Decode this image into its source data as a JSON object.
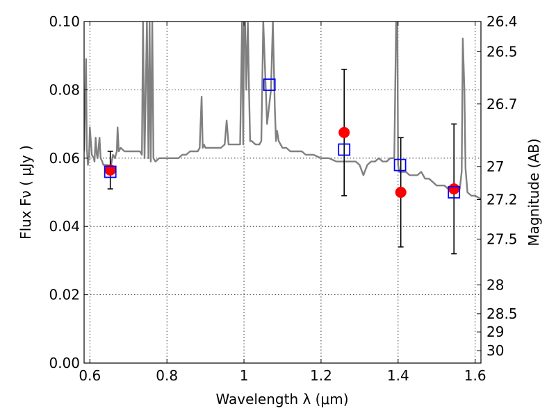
{
  "chart_data": {
    "type": "scatter",
    "title": "",
    "xlabel": "Wavelength  λ (μm)",
    "ylabel": "Flux  Fν  ( μJy )",
    "y2label": "Magnitude (AB)",
    "xlim": [
      0.585,
      1.615
    ],
    "ylim": [
      0.0,
      0.1
    ],
    "grid": true,
    "x_ticks": [
      0.6,
      0.8,
      1.0,
      1.2,
      1.4,
      1.6
    ],
    "x_tick_labels": [
      "0.6",
      "0.8",
      "1",
      "1.2",
      "1.4",
      "1.6"
    ],
    "y_ticks": [
      0.0,
      0.02,
      0.04,
      0.06,
      0.08,
      0.1
    ],
    "y_tick_labels": [
      "0.00",
      "0.02",
      "0.04",
      "0.06",
      "0.08",
      "0.10"
    ],
    "y2_ticks": [
      {
        "label": "26.4",
        "mag": 26.4
      },
      {
        "label": "26.5",
        "mag": 26.5
      },
      {
        "label": "26.7",
        "mag": 26.7
      },
      {
        "label": "27",
        "mag": 27
      },
      {
        "label": "27.2",
        "mag": 27.2
      },
      {
        "label": "27.5",
        "mag": 27.5
      },
      {
        "label": "28",
        "mag": 28
      },
      {
        "label": "28.5",
        "mag": 28.5
      },
      {
        "label": "29",
        "mag": 29
      },
      {
        "label": "30",
        "mag": 30
      }
    ],
    "colors": {
      "spectrum": "#808080",
      "observed": "#ff0000",
      "model": "#0000ff",
      "errorbar": "#000000",
      "grid": "#000000"
    },
    "series": [
      {
        "kind": "line",
        "x": [
          0.585,
          0.59,
          0.592,
          0.595,
          0.598,
          0.6,
          0.605,
          0.61,
          0.612,
          0.615,
          0.618,
          0.62,
          0.625,
          0.628,
          0.632,
          0.635,
          0.64,
          0.645,
          0.65,
          0.655,
          0.66,
          0.665,
          0.67,
          0.672,
          0.675,
          0.68,
          0.69,
          0.7,
          0.71,
          0.72,
          0.73,
          0.735,
          0.738,
          0.742,
          0.748,
          0.752,
          0.755,
          0.758,
          0.762,
          0.765,
          0.77,
          0.78,
          0.79,
          0.8,
          0.81,
          0.82,
          0.83,
          0.84,
          0.85,
          0.86,
          0.87,
          0.88,
          0.885,
          0.89,
          0.893,
          0.896,
          0.9,
          0.91,
          0.92,
          0.93,
          0.94,
          0.95,
          0.955,
          0.96,
          0.963,
          0.966,
          0.97,
          0.98,
          0.99,
          0.995,
          0.998,
          1.0,
          1.003,
          1.006,
          1.01,
          1.013,
          1.016,
          1.02,
          1.03,
          1.04,
          1.045,
          1.05,
          1.06,
          1.07,
          1.075,
          1.08,
          1.083,
          1.086,
          1.09,
          1.1,
          1.11,
          1.12,
          1.13,
          1.14,
          1.15,
          1.16,
          1.18,
          1.2,
          1.22,
          1.24,
          1.25,
          1.26,
          1.27,
          1.28,
          1.29,
          1.3,
          1.31,
          1.32,
          1.33,
          1.34,
          1.35,
          1.36,
          1.37,
          1.38,
          1.39,
          1.395,
          1.398,
          1.4,
          1.403,
          1.406,
          1.41,
          1.42,
          1.43,
          1.44,
          1.45,
          1.46,
          1.47,
          1.48,
          1.49,
          1.5,
          1.51,
          1.52,
          1.53,
          1.54,
          1.55,
          1.56,
          1.565,
          1.568,
          1.572,
          1.575,
          1.58,
          1.59,
          1.6,
          1.615
        ],
        "y": [
          0.062,
          0.089,
          0.063,
          0.058,
          0.061,
          0.069,
          0.061,
          0.06,
          0.059,
          0.066,
          0.061,
          0.06,
          0.066,
          0.06,
          0.059,
          0.058,
          0.058,
          0.058,
          0.057,
          0.058,
          0.061,
          0.06,
          0.062,
          0.069,
          0.062,
          0.063,
          0.062,
          0.062,
          0.062,
          0.062,
          0.062,
          0.061,
          0.1,
          0.06,
          0.1,
          0.06,
          0.1,
          0.059,
          0.1,
          0.06,
          0.059,
          0.06,
          0.06,
          0.06,
          0.06,
          0.06,
          0.06,
          0.061,
          0.061,
          0.062,
          0.062,
          0.062,
          0.063,
          0.078,
          0.063,
          0.064,
          0.063,
          0.063,
          0.063,
          0.063,
          0.063,
          0.064,
          0.071,
          0.064,
          0.064,
          0.064,
          0.064,
          0.064,
          0.064,
          0.1,
          0.064,
          0.1,
          0.1,
          0.08,
          0.1,
          0.08,
          0.065,
          0.065,
          0.064,
          0.064,
          0.065,
          0.1,
          0.07,
          0.08,
          0.1,
          0.075,
          0.065,
          0.068,
          0.065,
          0.063,
          0.063,
          0.062,
          0.062,
          0.062,
          0.062,
          0.061,
          0.061,
          0.06,
          0.06,
          0.059,
          0.059,
          0.059,
          0.059,
          0.059,
          0.059,
          0.058,
          0.055,
          0.058,
          0.059,
          0.059,
          0.06,
          0.059,
          0.059,
          0.06,
          0.06,
          0.1,
          0.1,
          0.058,
          0.056,
          0.056,
          0.056,
          0.056,
          0.055,
          0.055,
          0.055,
          0.056,
          0.054,
          0.054,
          0.053,
          0.052,
          0.052,
          0.052,
          0.051,
          0.051,
          0.051,
          0.051,
          0.056,
          0.095,
          0.08,
          0.057,
          0.05,
          0.049,
          0.049,
          0.048
        ]
      },
      {
        "kind": "points",
        "x": [
          0.653,
          1.26,
          1.407,
          1.545
        ],
        "y": [
          0.0565,
          0.0675,
          0.05,
          0.051
        ],
        "yerr": [
          0.0055,
          0.0185,
          0.016,
          0.019
        ]
      },
      {
        "kind": "squares",
        "x": [
          0.653,
          1.066,
          1.26,
          1.405,
          1.545
        ],
        "y": [
          0.056,
          0.0815,
          0.0625,
          0.058,
          0.05
        ]
      }
    ]
  }
}
